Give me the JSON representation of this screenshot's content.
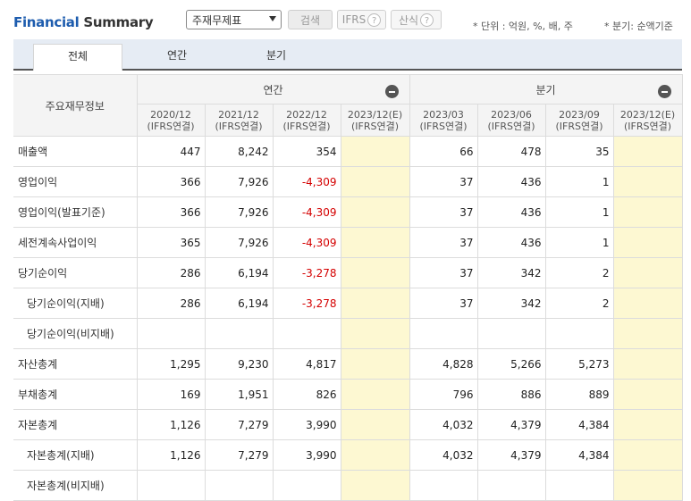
{
  "header": {
    "title_part1": "Financial",
    "title_part2": "Summary",
    "select_value": "주재무제표",
    "search_label": "검색",
    "ifrs_label": "IFRS",
    "formula_label": "산식",
    "help_glyph": "?",
    "unit_note": "* 단위 : 억원, %, 배, 주",
    "quarter_note": "* 분기: 순액기준"
  },
  "tabs": [
    "전체",
    "연간",
    "분기"
  ],
  "table": {
    "corner_label": "주요재무정보",
    "group_annual": "연간",
    "group_quarter": "분기",
    "columns": [
      {
        "period": "2020/12",
        "basis": "(IFRS연결)"
      },
      {
        "period": "2021/12",
        "basis": "(IFRS연결)"
      },
      {
        "period": "2022/12",
        "basis": "(IFRS연결)"
      },
      {
        "period": "2023/12(E)",
        "basis": "(IFRS연결)"
      },
      {
        "period": "2023/03",
        "basis": "(IFRS연결)"
      },
      {
        "period": "2023/06",
        "basis": "(IFRS연결)"
      },
      {
        "period": "2023/09",
        "basis": "(IFRS연결)"
      },
      {
        "period": "2023/12(E)",
        "basis": "(IFRS연결)"
      }
    ],
    "rows": [
      {
        "label": "매출액",
        "values": [
          "447",
          "8,242",
          "354",
          "",
          "66",
          "478",
          "35",
          ""
        ]
      },
      {
        "label": "영업이익",
        "values": [
          "366",
          "7,926",
          "-4,309",
          "",
          "37",
          "436",
          "1",
          ""
        ]
      },
      {
        "label": "영업이익(발표기준)",
        "values": [
          "366",
          "7,926",
          "-4,309",
          "",
          "37",
          "436",
          "1",
          ""
        ]
      },
      {
        "label": "세전계속사업이익",
        "values": [
          "365",
          "7,926",
          "-4,309",
          "",
          "37",
          "436",
          "1",
          ""
        ]
      },
      {
        "label": "당기순이익",
        "values": [
          "286",
          "6,194",
          "-3,278",
          "",
          "37",
          "342",
          "2",
          ""
        ]
      },
      {
        "label": "당기순이익(지배)",
        "values": [
          "286",
          "6,194",
          "-3,278",
          "",
          "37",
          "342",
          "2",
          ""
        ]
      },
      {
        "label": "당기순이익(비지배)",
        "values": [
          "",
          "",
          "",
          "",
          "",
          "",
          "",
          ""
        ]
      },
      {
        "label": "자산총계",
        "values": [
          "1,295",
          "9,230",
          "4,817",
          "",
          "4,828",
          "5,266",
          "5,273",
          ""
        ]
      },
      {
        "label": "부채총계",
        "values": [
          "169",
          "1,951",
          "826",
          "",
          "796",
          "886",
          "889",
          ""
        ]
      },
      {
        "label": "자본총계",
        "values": [
          "1,126",
          "7,279",
          "3,990",
          "",
          "4,032",
          "4,379",
          "4,384",
          ""
        ]
      },
      {
        "label": "자본총계(지배)",
        "values": [
          "1,126",
          "7,279",
          "3,990",
          "",
          "4,032",
          "4,379",
          "4,384",
          ""
        ]
      },
      {
        "label": "자본총계(비지배)",
        "values": [
          "",
          "",
          "",
          "",
          "",
          "",
          "",
          ""
        ]
      }
    ]
  },
  "colors": {
    "negative": "#d40000",
    "estimate_bg": "#fdf8d2",
    "brand": "#1d5cae"
  }
}
